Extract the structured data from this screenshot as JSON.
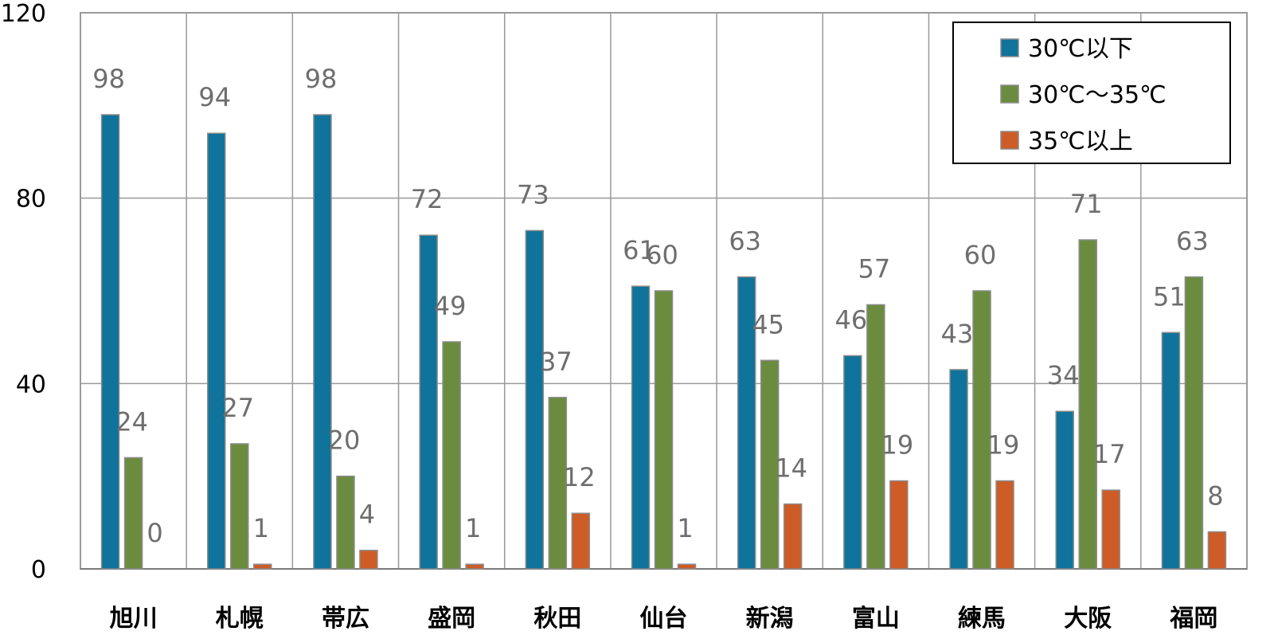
{
  "chart_data": {
    "type": "bar",
    "categories": [
      "旭川",
      "札幌",
      "帯広",
      "盛岡",
      "秋田",
      "仙台",
      "新潟",
      "富山",
      "練馬",
      "大阪",
      "福岡"
    ],
    "series": [
      {
        "name": "30℃以下",
        "color": "#0f739b",
        "values": [
          98,
          94,
          98,
          72,
          73,
          61,
          63,
          46,
          43,
          34,
          51
        ]
      },
      {
        "name": "30℃～35℃",
        "color": "#6b8c3e",
        "values": [
          24,
          27,
          20,
          49,
          37,
          60,
          45,
          57,
          60,
          71,
          63
        ]
      },
      {
        "name": "35℃以上",
        "color": "#cd5c26",
        "values": [
          0,
          1,
          4,
          1,
          12,
          1,
          14,
          19,
          19,
          17,
          8
        ]
      }
    ],
    "ylim": [
      0,
      120
    ],
    "yticks": [
      "0",
      "40",
      "80",
      "120"
    ],
    "grid": true,
    "legend_position": "top-right"
  }
}
